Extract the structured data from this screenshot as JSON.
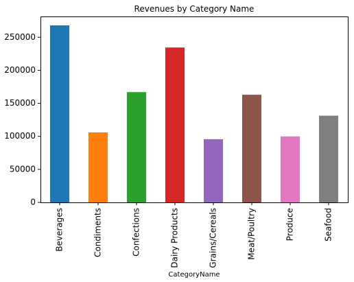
{
  "chart_data": {
    "type": "bar",
    "title": "Revenues by Category Name",
    "xlabel": "CategoryName",
    "ylabel": "",
    "categories": [
      "Beverages",
      "Condiments",
      "Confections",
      "Dairy Products",
      "Grains/Cereals",
      "Meat/Poultry",
      "Produce",
      "Seafood"
    ],
    "values": [
      268000,
      106000,
      167000,
      234500,
      95700,
      163000,
      99900,
      131300
    ],
    "colors": [
      "#1f77b4",
      "#ff7f0e",
      "#2ca02c",
      "#d62728",
      "#9467bd",
      "#8c564b",
      "#e377c2",
      "#7f7f7f"
    ],
    "ylim": [
      0,
      281500
    ],
    "yticks": [
      0,
      50000,
      100000,
      150000,
      200000,
      250000
    ],
    "grid": false,
    "legend": "none"
  }
}
